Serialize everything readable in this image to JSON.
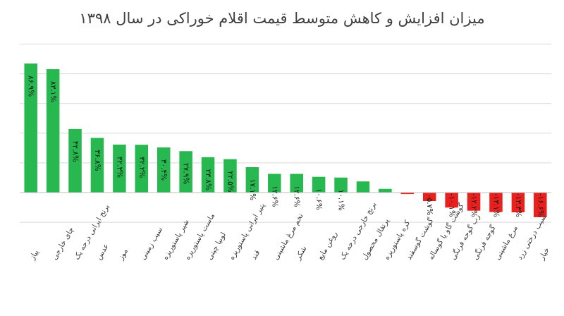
{
  "chart_data": {
    "type": "bar",
    "title": "میزان افزایش و کاهش متوسط قیمت اقلام خوراکی در  سال ۱۳۹۸",
    "xlabel": "",
    "ylabel": "",
    "ylim": [
      -20,
      100
    ],
    "grid": true,
    "legend": "none",
    "categories": [
      "پیاز",
      "چای خارجی",
      "برنج ایرانی درجه یک",
      "عدس",
      "موز",
      "سیب زمینی",
      "شیر پاستوریزه",
      "ماست پاستوریزه",
      "لوبیا چیتی",
      "پنیر ایرانی پاستوریزه",
      "قند",
      "تخم مرغ ماشینی",
      "شکر",
      "روغن مایع",
      "برنج خارجی درجه یک",
      "پرتقال محصول",
      "کره پاستوریزه",
      "گوشت گوسفند",
      "گوشت گاو یا گوساله",
      "رب گوجه فرنگی",
      "گوجه فرنگی",
      "مرغ ماشینی",
      "سیب درختی زرد",
      "خیار"
    ],
    "values": [
      86.9,
      83.1,
      42.8,
      36.8,
      32.3,
      32.2,
      30.4,
      27.9,
      23.8,
      22.5,
      17.1,
      12.6,
      12.6,
      10.6,
      10.1,
      7.5,
      2.5,
      -1.0,
      -5.7,
      -10.1,
      -12.2,
      -13.1,
      -13.3,
      -16.6
    ],
    "data_labels": [
      "۸۶.۹%",
      "۸۳.۱%",
      "۴۲.۸%",
      "۳۶.۸%",
      "۳۲.۳%",
      "۳۲.۲%",
      "۳۰.۴%",
      "۲۷.۹%",
      "۲۳.۸%",
      "۲۲.۵%",
      "۱۷.۱%",
      "۱۲.۶%",
      "۱۲.۶%",
      "۱۰.۶%",
      "۱۰.۱%",
      "",
      "",
      "",
      "-۵.۷%",
      "-۱۰.۱%",
      "-۱۲.۲%",
      "-۱۳.۱%",
      "-۱۳.۳%",
      "-۱۶.۶%"
    ],
    "colors": {
      "positive": "#27b84f",
      "negative": "#e8201e",
      "grid": "#d9d9d9",
      "axis": "#bfbfbf",
      "text": "#404040"
    }
  }
}
